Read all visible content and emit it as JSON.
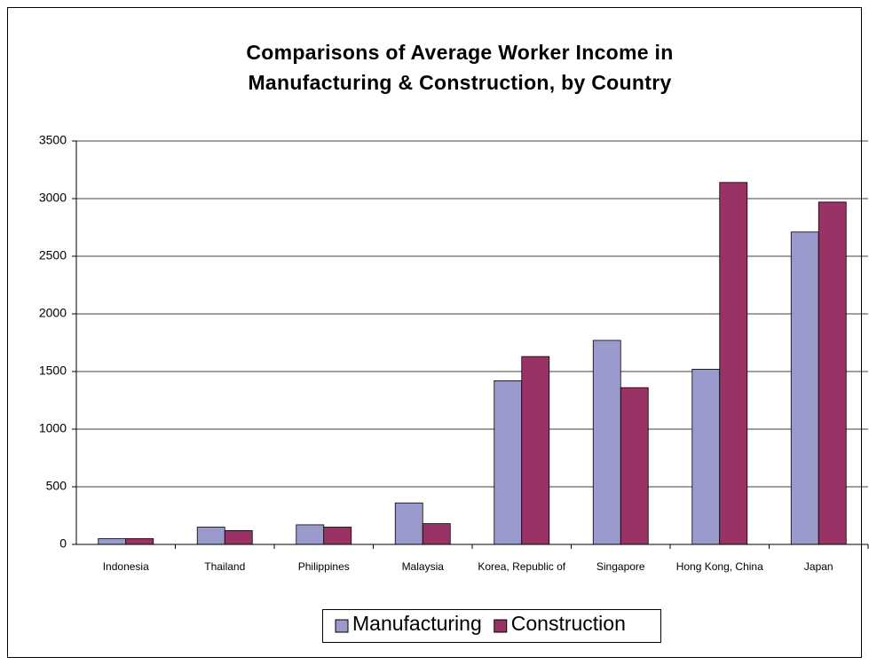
{
  "chart_data": {
    "type": "bar",
    "title": "Comparisons of Average Worker Income in Manufacturing & Construction, by Country",
    "categories": [
      "Indonesia",
      "Thailand",
      "Philippines",
      "Malaysia",
      "Korea, Republic of",
      "Singapore",
      "Hong Kong, China",
      "Japan"
    ],
    "series": [
      {
        "name": "Manufacturing",
        "color": "#9999cc",
        "values": [
          50,
          150,
          170,
          360,
          1420,
          1770,
          1520,
          2710
        ]
      },
      {
        "name": "Construction",
        "color": "#993366",
        "values": [
          50,
          120,
          150,
          180,
          1630,
          1360,
          3140,
          2970
        ]
      }
    ],
    "ylim": [
      0,
      3500
    ],
    "yticks": [
      0,
      500,
      1000,
      1500,
      2000,
      2500,
      3000,
      3500
    ],
    "grid": true,
    "legend": "bottom"
  }
}
